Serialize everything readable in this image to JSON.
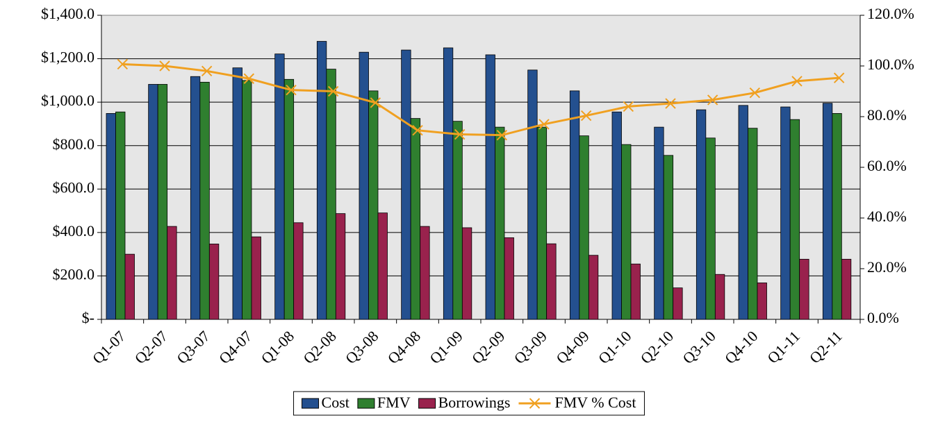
{
  "chart_data": {
    "type": "bar",
    "categories": [
      "Q1-07",
      "Q2-07",
      "Q3-07",
      "Q4-07",
      "Q1-08",
      "Q2-08",
      "Q3-08",
      "Q4-08",
      "Q1-09",
      "Q2-09",
      "Q3-09",
      "Q4-09",
      "Q1-10",
      "Q2-10",
      "Q3-10",
      "Q4-10",
      "Q1-11",
      "Q2-11"
    ],
    "series": [
      {
        "name": "Cost",
        "color": "#24508f",
        "values": [
          948,
          1082,
          1118,
          1158,
          1222,
          1280,
          1230,
          1240,
          1250,
          1218,
          1148,
          1052,
          955,
          885,
          965,
          985,
          978,
          995
        ]
      },
      {
        "name": "FMV",
        "color": "#2f7f2f",
        "values": [
          955,
          1082,
          1092,
          1100,
          1105,
          1152,
          1052,
          925,
          912,
          885,
          885,
          845,
          805,
          755,
          835,
          880,
          920,
          948
        ]
      },
      {
        "name": "Borrowings",
        "color": "#99224d",
        "values": [
          300,
          428,
          347,
          380,
          445,
          487,
          490,
          428,
          422,
          376,
          348,
          295,
          255,
          145,
          207,
          168,
          277,
          277
        ]
      },
      {
        "name": "FMV % Cost",
        "color": "#f0a020",
        "type": "line",
        "axis": "y2",
        "values": [
          100.7,
          100,
          98,
          95,
          90.5,
          90,
          85.5,
          74.6,
          73,
          72.7,
          77,
          80.4,
          84,
          85.2,
          86.6,
          89.4,
          94,
          95.3
        ]
      }
    ],
    "ylim": [
      0,
      1400
    ],
    "yticks": [
      {
        "value": 0,
        "label": "$-"
      },
      {
        "value": 200,
        "label": "$200.0"
      },
      {
        "value": 400,
        "label": "$400.0"
      },
      {
        "value": 600,
        "label": "$600.0"
      },
      {
        "value": 800,
        "label": "$800.0"
      },
      {
        "value": 1000,
        "label": "$1,000.0"
      },
      {
        "value": 1200,
        "label": "$1,200.0"
      },
      {
        "value": 1400,
        "label": "$1,400.0"
      }
    ],
    "y2lim": [
      0,
      120
    ],
    "y2ticks": [
      {
        "value": 0,
        "label": "0.0%"
      },
      {
        "value": 20,
        "label": "20.0%"
      },
      {
        "value": 40,
        "label": "40.0%"
      },
      {
        "value": 60,
        "label": "60.0%"
      },
      {
        "value": 80,
        "label": "80.0%"
      },
      {
        "value": 100,
        "label": "100.0%"
      },
      {
        "value": 120,
        "label": "120.0%"
      }
    ],
    "grid": true,
    "legend": "bottom"
  }
}
